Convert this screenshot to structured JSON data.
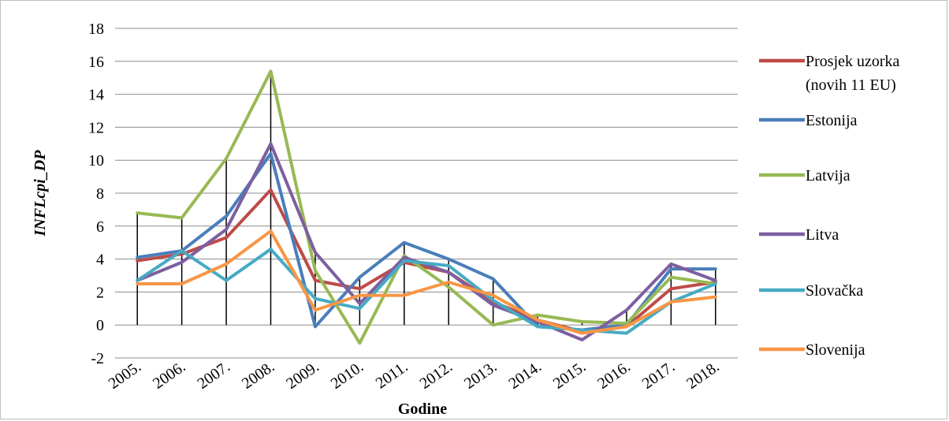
{
  "chart_data": {
    "type": "line",
    "xlabel": "Godine",
    "ylabel": "INFLcpi_DP",
    "ylim": [
      -2,
      18
    ],
    "ytick_step": 2,
    "grid": true,
    "legend_position": "right",
    "drop_lines": true,
    "categories": [
      "2005.",
      "2006.",
      "2007.",
      "2008.",
      "2009.",
      "2010.",
      "2011.",
      "2012.",
      "2013.",
      "2014.",
      "2015.",
      "2016.",
      "2017.",
      "2018."
    ],
    "series": [
      {
        "name": "Prosjek uzorka (novih 11 EU)",
        "color": "#be4b48",
        "values": [
          3.9,
          4.3,
          5.3,
          8.2,
          2.7,
          2.2,
          3.8,
          3.2,
          1.4,
          0.3,
          -0.4,
          -0.1,
          2.2,
          2.6
        ]
      },
      {
        "name": "Estonija",
        "color": "#4a7ebb",
        "values": [
          4.1,
          4.5,
          6.6,
          10.4,
          -0.1,
          2.9,
          5.0,
          4.0,
          2.8,
          -0.1,
          -0.3,
          0.0,
          3.4,
          3.4
        ]
      },
      {
        "name": "Latvija",
        "color": "#98b954",
        "values": [
          6.8,
          6.5,
          10.1,
          15.4,
          3.3,
          -1.1,
          4.2,
          2.3,
          0.0,
          0.6,
          0.2,
          0.1,
          2.9,
          2.5
        ]
      },
      {
        "name": "Litva",
        "color": "#7d5fa0",
        "values": [
          2.7,
          3.8,
          5.8,
          11.0,
          4.4,
          1.3,
          4.1,
          3.2,
          1.2,
          0.2,
          -0.9,
          0.9,
          3.7,
          2.7
        ]
      },
      {
        "name": "Slovačka",
        "color": "#46aac4",
        "values": [
          2.7,
          4.5,
          2.7,
          4.6,
          1.6,
          1.0,
          3.9,
          3.6,
          1.5,
          -0.1,
          -0.3,
          -0.5,
          1.4,
          2.5
        ]
      },
      {
        "name": "Slovenija",
        "color": "#f79646",
        "values": [
          2.5,
          2.5,
          3.7,
          5.7,
          0.9,
          1.8,
          1.8,
          2.6,
          1.8,
          0.3,
          -0.5,
          -0.1,
          1.4,
          1.7
        ]
      }
    ]
  }
}
